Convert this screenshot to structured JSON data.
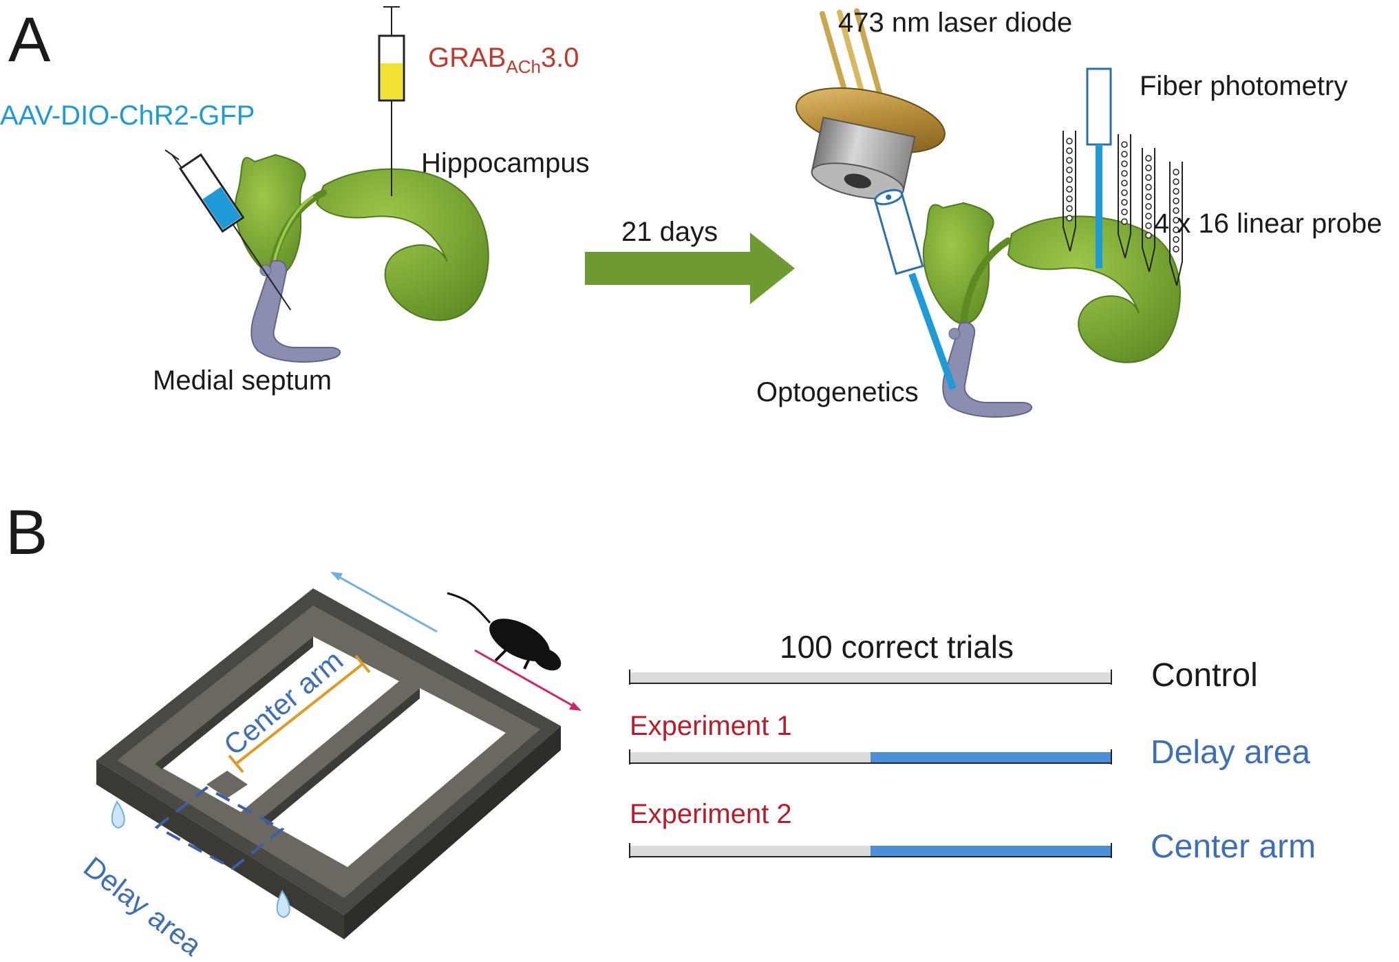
{
  "panel_a": {
    "letter": "A",
    "injection_1": "AAV-DIO-ChR2-GFP",
    "injection_2_main": "GRAB",
    "injection_2_sub": "ACh",
    "injection_2_suffix": "3.0",
    "hippocampus": "Hippocampus",
    "medial_septum": "Medial septum",
    "arrow_label": "21 days",
    "laser": "473 nm laser diode",
    "fiber": "Fiber photometry",
    "probe": "4 x 16 linear probe",
    "optogenetics": "Optogenetics"
  },
  "panel_b": {
    "letter": "B",
    "center_arm": "Center arm",
    "delay_area": "Delay area",
    "bar_header": "100 correct trials",
    "rows": [
      {
        "label": "",
        "condition": "Control",
        "stim_fraction": 0
      },
      {
        "label": "Experiment 1",
        "condition": "Delay area",
        "stim_fraction": 0.5
      },
      {
        "label": "Experiment 2",
        "condition": "Center arm",
        "stim_fraction": 0.5
      }
    ]
  },
  "colors": {
    "brain_green": "#77a630",
    "septum_purple": "#8a8fb2",
    "arrow_green": "#6e9a32",
    "laser_blue": "#1e9bd7",
    "bar_gray": "#dcdcdc",
    "stim_blue": "#4a90d9",
    "maze_dark": "#55524c"
  }
}
